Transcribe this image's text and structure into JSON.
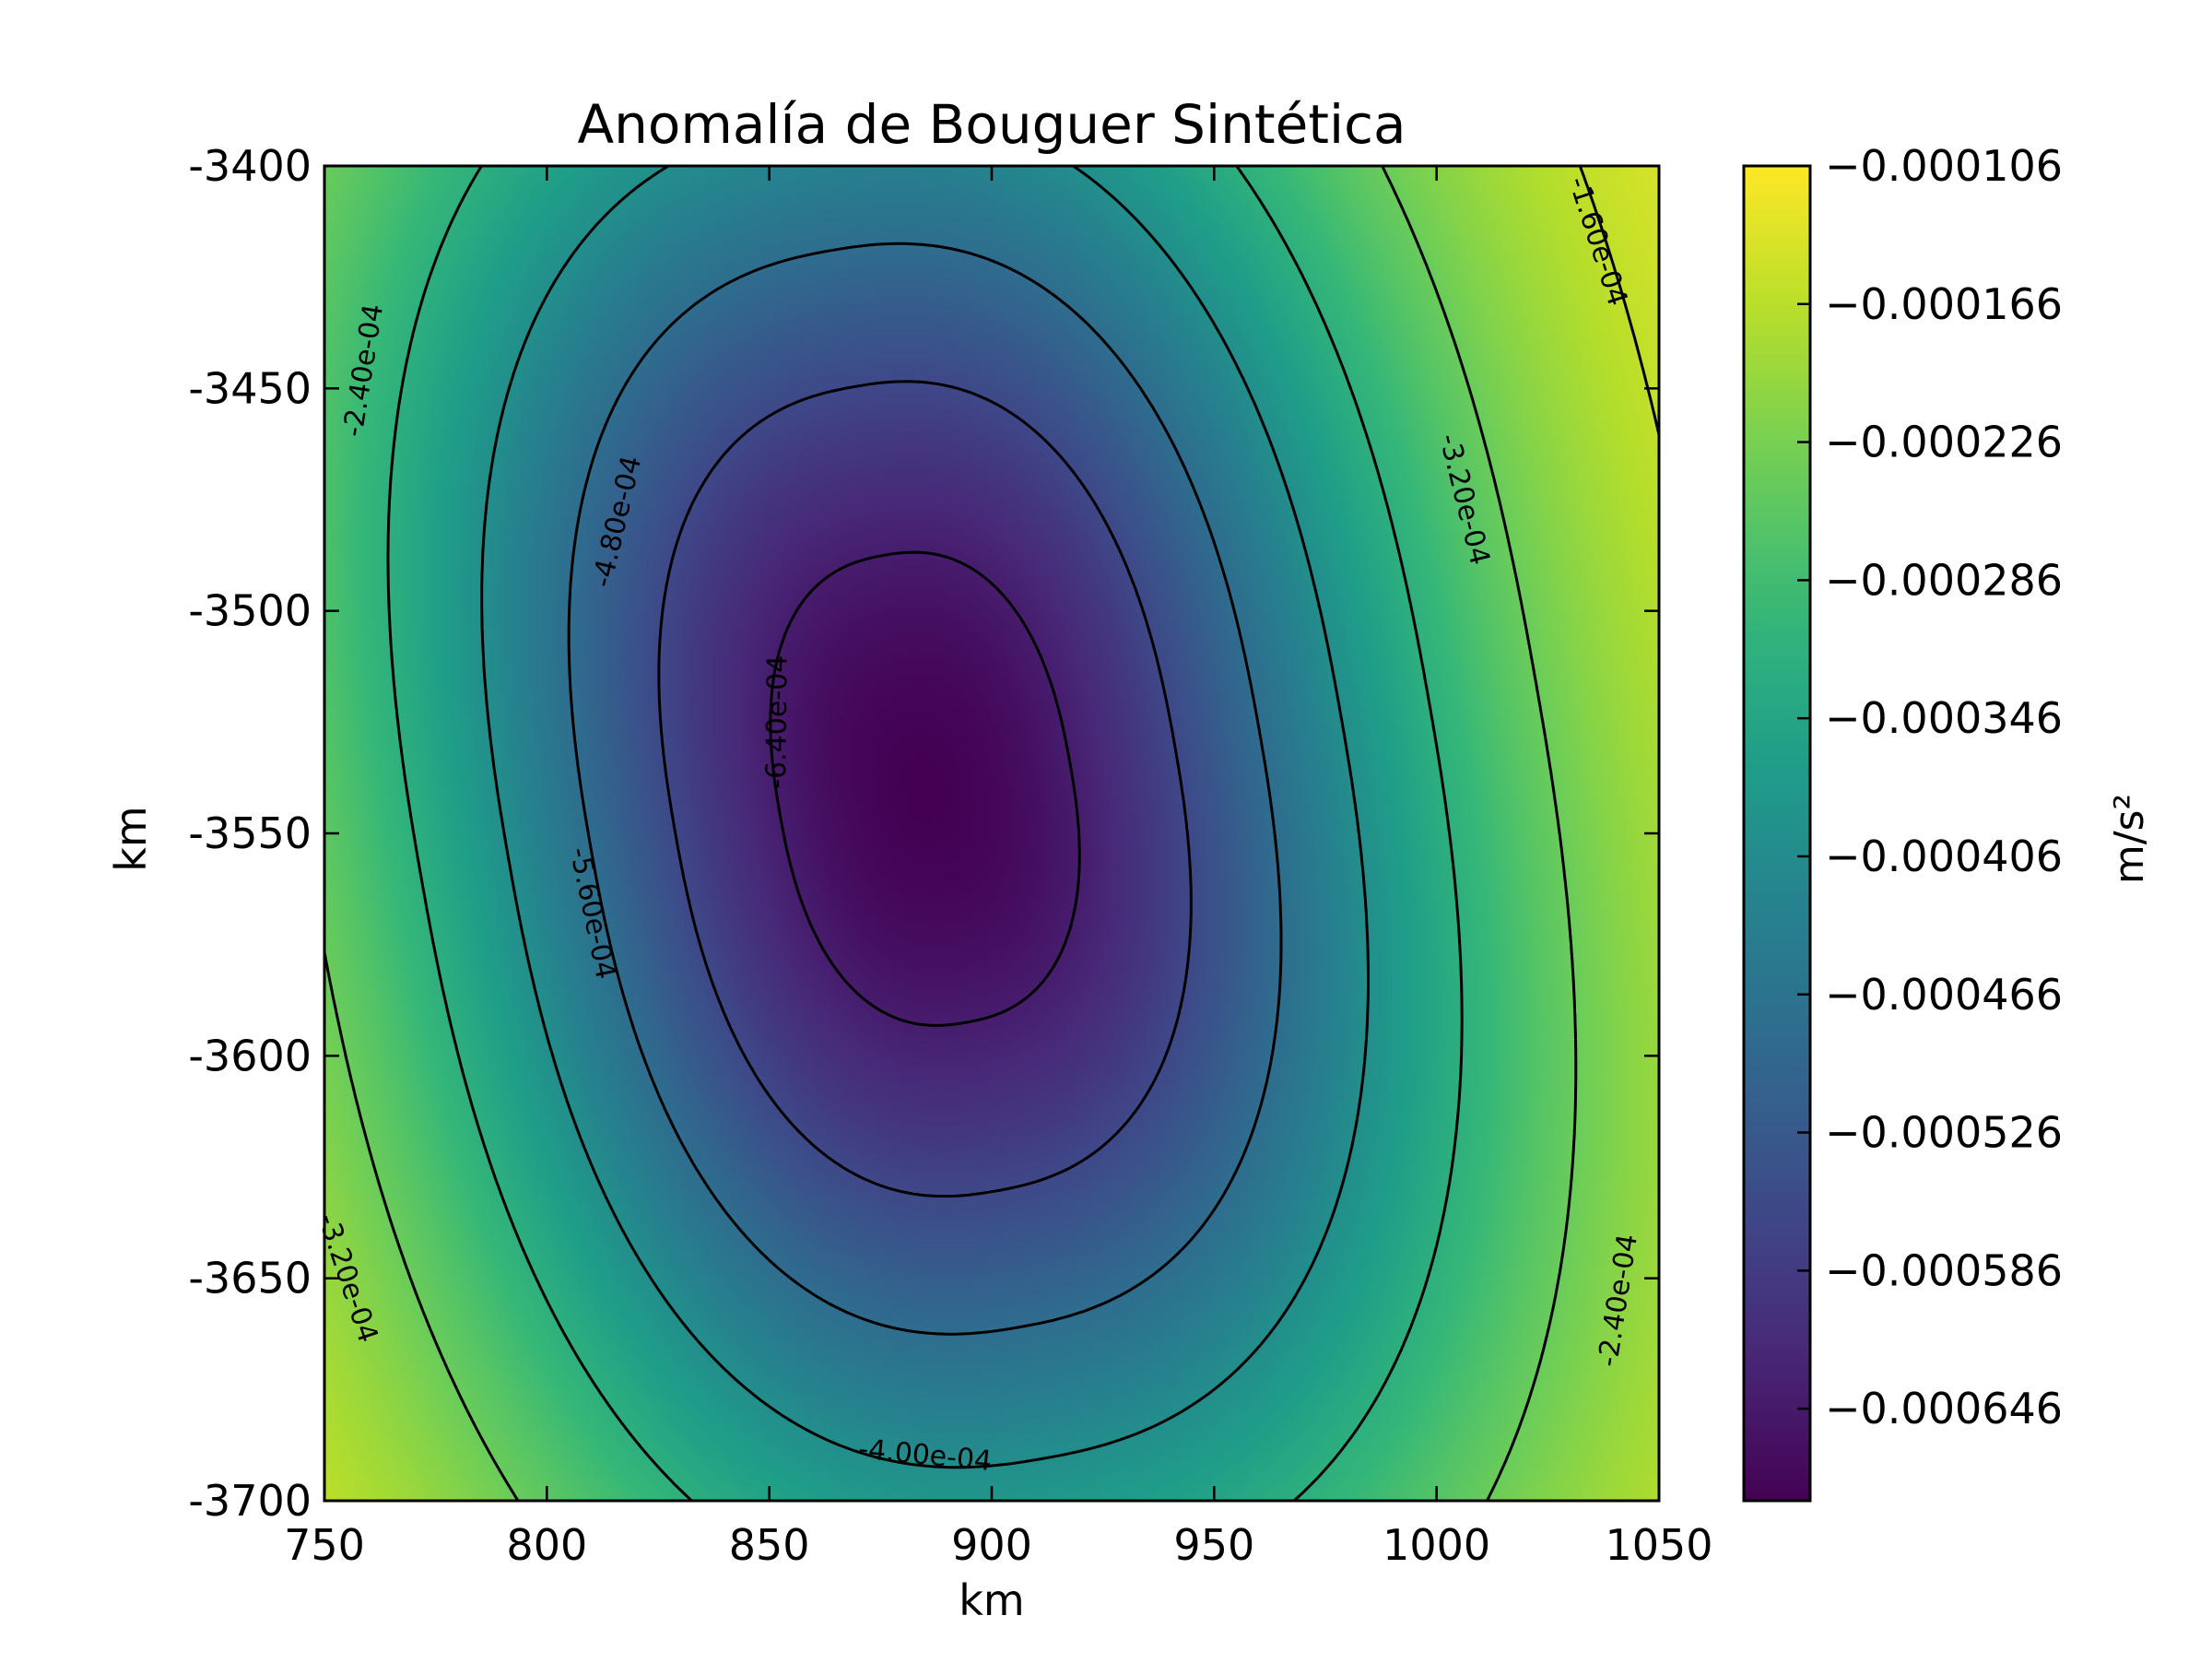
{
  "chart_data": {
    "type": "heatmap",
    "title": "Anomalía de Bouguer Sintética",
    "xlabel": "km",
    "ylabel": "km",
    "xlim": [
      750,
      1050
    ],
    "ylim": [
      -3700,
      -3400
    ],
    "x_ticks": [
      750,
      800,
      850,
      900,
      950,
      1000,
      1050
    ],
    "y_ticks": [
      -3400,
      -3450,
      -3500,
      -3550,
      -3600,
      -3650,
      -3700
    ],
    "x_tick_labels": [
      "750",
      "800",
      "850",
      "900",
      "950",
      "1000",
      "1050"
    ],
    "y_tick_labels": [
      "-3400",
      "-3450",
      "-3500",
      "-3550",
      "-3600",
      "-3650",
      "-3700"
    ],
    "colormap": "viridis",
    "value_range": [
      -0.000686,
      -0.000106
    ],
    "minimum_location": [
      885,
      -3540
    ],
    "colorbar": {
      "label": "m/s²",
      "ticks": [
        -0.000106,
        -0.000166,
        -0.000226,
        -0.000286,
        -0.000346,
        -0.000406,
        -0.000466,
        -0.000526,
        -0.000586,
        -0.000646
      ],
      "tick_labels": [
        "−0.000106",
        "−0.000166",
        "−0.000226",
        "−0.000286",
        "−0.000346",
        "−0.000406",
        "−0.000466",
        "−0.000526",
        "−0.000586",
        "−0.000646"
      ]
    },
    "contour_levels": [
      -0.00064,
      -0.00056,
      -0.00048,
      -0.0004,
      -0.00032,
      -0.00024,
      -0.00016
    ],
    "contour_labels": [
      {
        "text": "-6.40e-04",
        "x": 852,
        "y": -3525
      },
      {
        "text": "-5.60e-04",
        "x": 810,
        "y": -3568
      },
      {
        "text": "-4.80e-04",
        "x": 816,
        "y": -3480
      },
      {
        "text": "-4.00e-04",
        "x": 885,
        "y": -3690
      },
      {
        "text": "-3.20e-04",
        "x": 1006,
        "y": -3475
      },
      {
        "text": "-3.20e-04",
        "x": 755,
        "y": -3650
      },
      {
        "text": "-2.40e-04",
        "x": 759,
        "y": -3446
      },
      {
        "text": "-2.40e-04",
        "x": 1041,
        "y": -3655
      },
      {
        "text": "-1.60e-04",
        "x": 1036,
        "y": -3417
      }
    ],
    "grid": false
  }
}
